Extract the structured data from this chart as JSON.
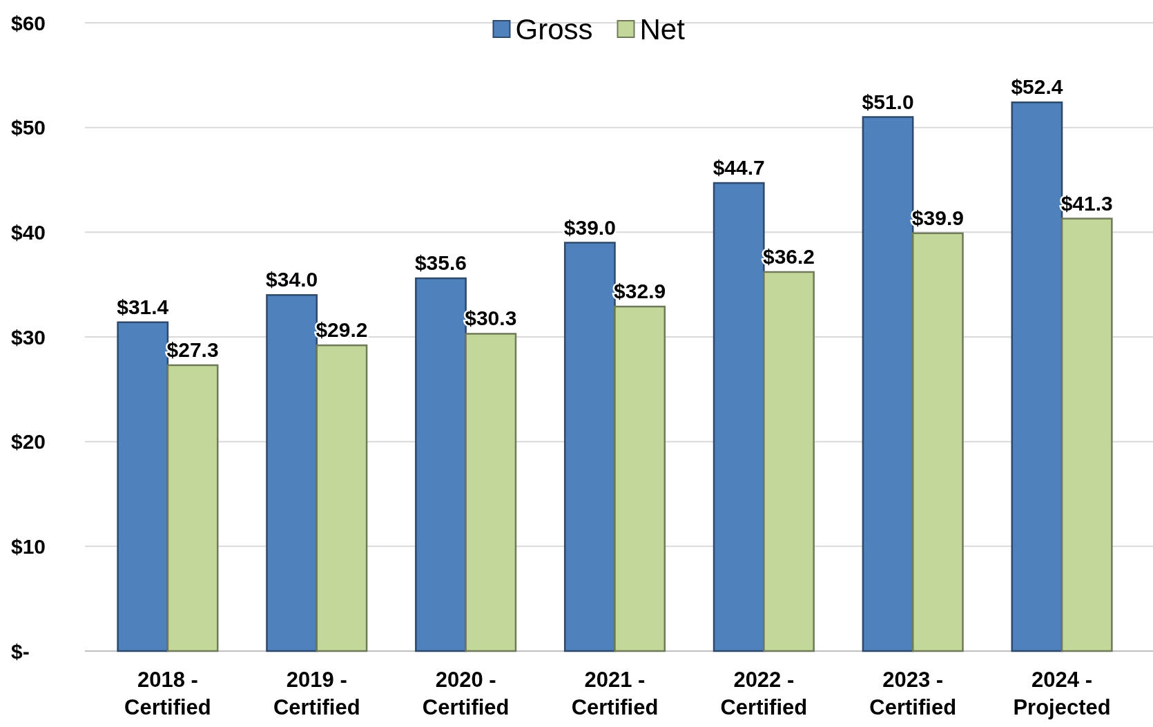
{
  "chart_data": {
    "type": "bar",
    "categories": [
      "2018 - Certified",
      "2019 - Certified",
      "2020 - Certified",
      "2021 - Certified",
      "2022 - Certified",
      "2023 - Certified",
      "2024 - Projected"
    ],
    "series": [
      {
        "name": "Gross",
        "color": "#4f81bd",
        "values": [
          31.4,
          34.0,
          35.6,
          39.0,
          44.7,
          51.0,
          52.4
        ],
        "value_labels": [
          "$31.4",
          "$34.0",
          "$35.6",
          "$39.0",
          "$44.7",
          "$51.0",
          "$52.4"
        ]
      },
      {
        "name": "Net",
        "color": "#c4d79b",
        "values": [
          27.3,
          29.2,
          30.3,
          32.9,
          36.2,
          39.9,
          41.3
        ],
        "value_labels": [
          "$27.3",
          "$29.2",
          "$30.3",
          "$32.9",
          "$36.2",
          "$39.9",
          "$41.3"
        ]
      }
    ],
    "ylim": [
      0,
      60
    ],
    "yticks": [
      {
        "value": 0,
        "label": "$-"
      },
      {
        "value": 10,
        "label": "$10"
      },
      {
        "value": 20,
        "label": "$20"
      },
      {
        "value": 30,
        "label": "$30"
      },
      {
        "value": 40,
        "label": "$40"
      },
      {
        "value": 50,
        "label": "$50"
      },
      {
        "value": 60,
        "label": "$60"
      }
    ],
    "grid": "y",
    "legend": "top"
  }
}
